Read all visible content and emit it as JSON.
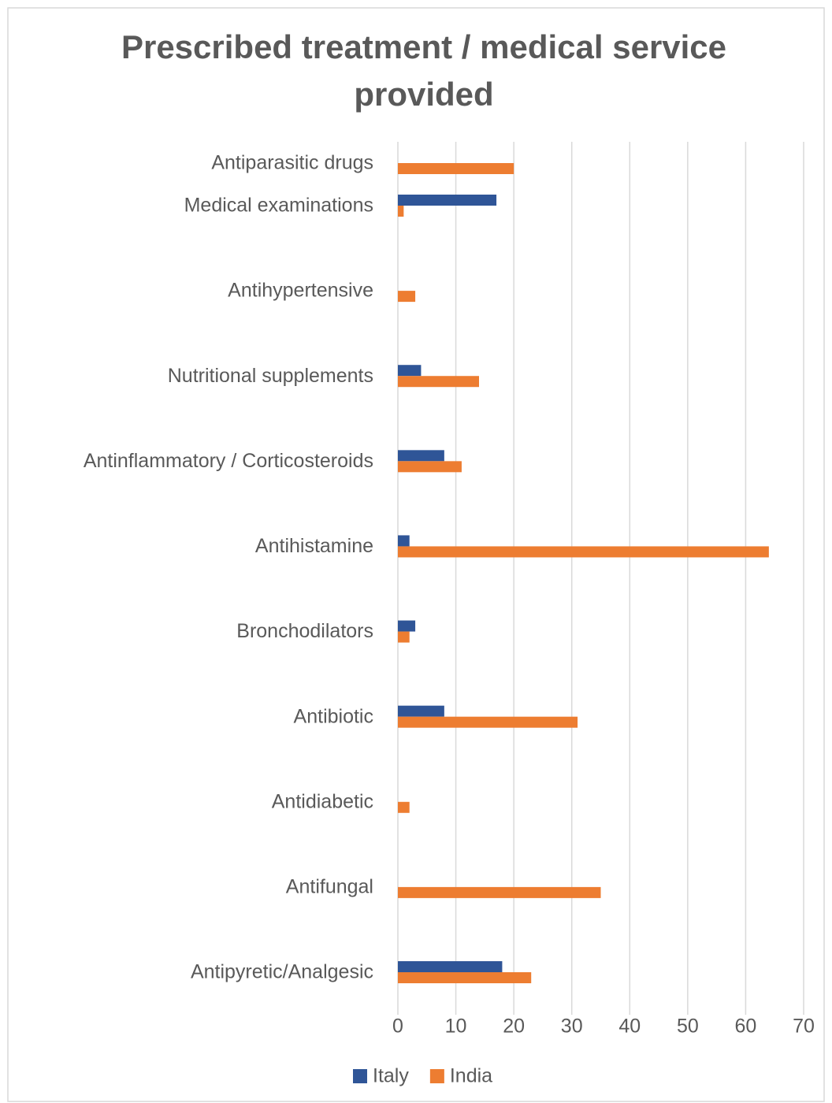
{
  "chart_data": {
    "type": "barh",
    "title": "Prescribed treatment / medical service provided",
    "categories": [
      "Antiparasitic drugs",
      "Medical examinations",
      "Antihypertensive",
      "Nutritional supplements",
      "Antinflammatory / Corticosteroids",
      "Antihistamine",
      "Bronchodilators",
      "Antibiotic",
      "Antidiabetic",
      "Antifungal",
      "Antipyretic/Analgesic"
    ],
    "series": [
      {
        "name": "Italy",
        "color": "#2f5597",
        "values": [
          null,
          17,
          null,
          4,
          8,
          2,
          3,
          8,
          null,
          null,
          18
        ]
      },
      {
        "name": "India",
        "color": "#ed7d31",
        "values": [
          20,
          1,
          3,
          14,
          11,
          64,
          2,
          31,
          2,
          35,
          23
        ]
      }
    ],
    "xlim": [
      0,
      70
    ],
    "xticks": [
      0,
      10,
      20,
      30,
      40,
      50,
      60,
      70
    ],
    "grid": true,
    "legend": "bottom"
  }
}
